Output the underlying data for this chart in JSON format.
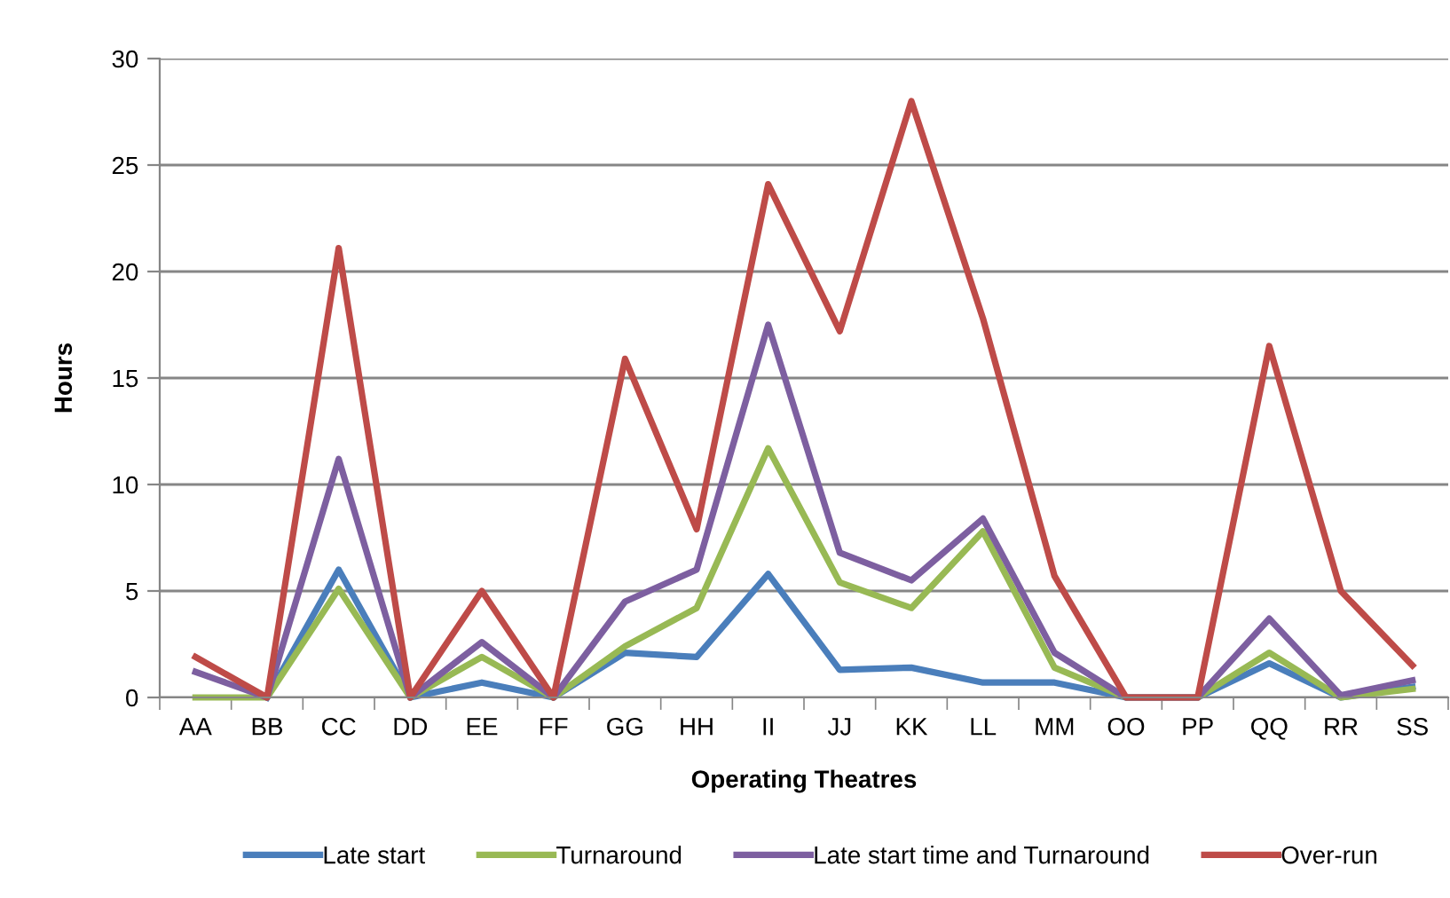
{
  "chart_data": {
    "type": "line",
    "xlabel": "Operating Theatres",
    "ylabel": "Hours",
    "categories": [
      "AA",
      "BB",
      "CC",
      "DD",
      "EE",
      "FF",
      "GG",
      "HH",
      "II",
      "JJ",
      "KK",
      "LL",
      "MM",
      "OO",
      "PP",
      "QQ",
      "RR",
      "SS"
    ],
    "series": [
      {
        "name": "Late start",
        "color": "#4a7ebb",
        "values": [
          null,
          0,
          6.0,
          0,
          0.7,
          0,
          2.1,
          1.9,
          5.8,
          1.3,
          1.4,
          0.7,
          0.7,
          0,
          0,
          1.6,
          0,
          0.5
        ]
      },
      {
        "name": "Turnaround",
        "color": "#98b954",
        "values": [
          0,
          0,
          5.1,
          0,
          1.9,
          0,
          2.4,
          4.2,
          11.7,
          5.4,
          4.2,
          7.8,
          1.4,
          0,
          0,
          2.1,
          0,
          0.4
        ]
      },
      {
        "name": "Late start time and Turnaround",
        "color": "#7d5fa0",
        "values": [
          1.2,
          0,
          11.2,
          0,
          2.6,
          0,
          4.5,
          6.0,
          17.5,
          6.8,
          5.5,
          8.4,
          2.1,
          0,
          0,
          3.7,
          0.1,
          0.8
        ]
      },
      {
        "name": "Over-run",
        "color": "#be4b48",
        "values": [
          1.9,
          0,
          21.1,
          0,
          5.0,
          0,
          15.9,
          7.9,
          24.1,
          17.2,
          28.0,
          17.8,
          5.7,
          0,
          0,
          16.5,
          5.0,
          1.5
        ]
      }
    ],
    "ylim": [
      0,
      30
    ],
    "yticks": [
      0,
      5,
      10,
      15,
      20,
      25,
      30
    ],
    "grid": "y",
    "legend": "bottom",
    "marker": "none",
    "line_style": "solid"
  }
}
